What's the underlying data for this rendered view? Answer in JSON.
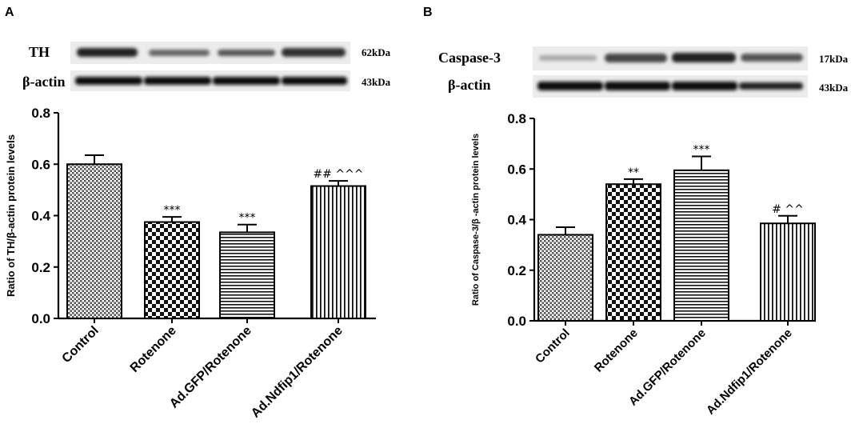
{
  "chart_data": [
    {
      "type": "bar",
      "panel_label": "A",
      "blots": [
        {
          "label": "TH",
          "kda": "62kDa"
        },
        {
          "label": "β-actin",
          "kda": "43kDa"
        }
      ],
      "categories": [
        "Control",
        "Rotenone",
        "Ad.GFP/Rotenone",
        "Ad.Ndfip1/Rotenone"
      ],
      "values": [
        0.6,
        0.375,
        0.335,
        0.515
      ],
      "errors": [
        0.035,
        0.02,
        0.03,
        0.02
      ],
      "annotations": [
        "",
        "***",
        "***",
        "## ^^^"
      ],
      "ylabel": "Ratio of TH/β-actin protein levels",
      "ylim": [
        0,
        0.8
      ],
      "yticks": [
        "0.0",
        "0.2",
        "0.4",
        "0.6",
        "0.8"
      ],
      "patterns": [
        "checker-fine",
        "checker-bold",
        "hlines",
        "vlines"
      ]
    },
    {
      "type": "bar",
      "panel_label": "B",
      "blots": [
        {
          "label": "Caspase-3",
          "kda": "17kDa"
        },
        {
          "label": "β-actin",
          "kda": "43kDa"
        }
      ],
      "categories": [
        "Control",
        "Rotenone",
        "Ad.GFP/Rotenone",
        "Ad.Ndfip1/Rotenone"
      ],
      "values": [
        0.34,
        0.54,
        0.595,
        0.385
      ],
      "errors": [
        0.03,
        0.02,
        0.055,
        0.03
      ],
      "annotations": [
        "",
        "**",
        "***",
        "# ^^"
      ],
      "ylabel": "Ratio of Caspase-3/β -actin protein levels",
      "ylim": [
        0,
        0.8
      ],
      "yticks": [
        "0.0",
        "0.2",
        "0.4",
        "0.6",
        "0.8"
      ],
      "patterns": [
        "checker-fine",
        "checker-bold",
        "hlines",
        "vlines"
      ]
    }
  ]
}
